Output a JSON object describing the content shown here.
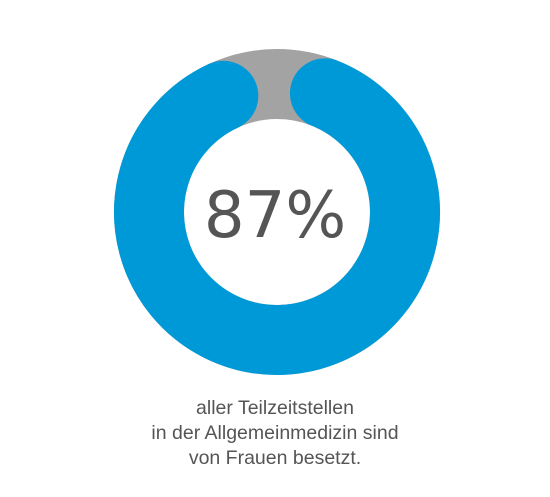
{
  "chart_data": {
    "type": "pie",
    "variant": "donut",
    "slices": [
      {
        "label": "",
        "value": 87,
        "color": "#0099d8"
      },
      {
        "label": "",
        "value": 13,
        "color": "#a3a3a3"
      }
    ],
    "center_label": "87%",
    "caption": [
      "aller Teilzeitstellen",
      "in der Allgemeinmedizin sind",
      "von Frauen besetzt."
    ]
  }
}
